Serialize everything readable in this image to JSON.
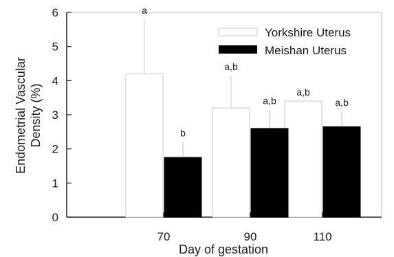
{
  "chart_data": {
    "type": "bar",
    "title": "",
    "xlabel": "Day of gestation",
    "ylabel_lines": [
      "Endometrial Vascular",
      "Density (%)"
    ],
    "categories": [
      "70",
      "90",
      "110"
    ],
    "ylim": [
      0,
      6
    ],
    "yticks": [
      "0",
      "1",
      "2",
      "3",
      "4",
      "5",
      "6"
    ],
    "grid": false,
    "legend_position": "top-right",
    "series": [
      {
        "name": "Yorkshire Uterus",
        "values": [
          4.2,
          3.2,
          3.4
        ],
        "error": [
          1.6,
          0.95,
          0.0
        ],
        "significance": [
          "a",
          "a,b",
          "a,b"
        ],
        "fill": "#ffffff",
        "stroke": "#c8c8c8"
      },
      {
        "name": "Meishan Uterus",
        "values": [
          1.75,
          2.6,
          2.65
        ],
        "error": [
          0.45,
          0.55,
          0.45
        ],
        "significance": [
          "b",
          "a,b",
          "a,b"
        ],
        "fill": "#000000",
        "stroke": "#000000"
      }
    ]
  }
}
